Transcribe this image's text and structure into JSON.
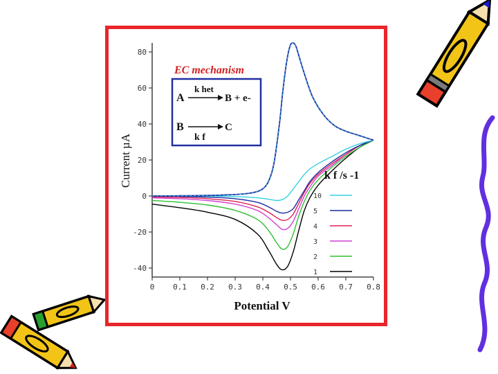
{
  "chart_data": {
    "type": "line",
    "title": "",
    "xlabel": "Potential V",
    "ylabel": "Current µA",
    "xlim": [
      0,
      0.8
    ],
    "ylim": [
      -45,
      85
    ],
    "xticks": [
      "0",
      "0.1",
      "0.2",
      "0.3",
      "0.4",
      "0.5",
      "0.6",
      "0.7",
      "0.8"
    ],
    "yticks": [
      {
        "value": 80,
        "label": "80"
      },
      {
        "value": 60,
        "label": "60"
      },
      {
        "value": 40,
        "label": "40"
      },
      {
        "value": 20,
        "label": "20"
      },
      {
        "value": 0,
        "label": "0"
      },
      {
        "value": -20,
        "label": "-20"
      },
      {
        "value": -40,
        "label": "-40"
      }
    ],
    "grid": false,
    "inset": {
      "title": "EC mechanism",
      "reaction1": {
        "reactant": "A",
        "rate": "k het",
        "product": "B + e-"
      },
      "reaction2": {
        "reactant": "B",
        "rate": "k f",
        "product": "C"
      }
    },
    "legend": {
      "title": "k f /s -1",
      "placement": "right",
      "entries": [
        {
          "name": "10",
          "color": "#35d0e0"
        },
        {
          "name": "5",
          "color": "#1a2aa0"
        },
        {
          "name": "4",
          "color": "#e02050"
        },
        {
          "name": "3",
          "color": "#d040d0"
        },
        {
          "name": "2",
          "color": "#30c030"
        },
        {
          "name": "1",
          "color": "#000000"
        }
      ]
    },
    "forward_sweep": {
      "x": [
        0,
        0.1,
        0.2,
        0.3,
        0.35,
        0.38,
        0.4,
        0.42,
        0.44,
        0.46,
        0.47,
        0.48,
        0.49,
        0.5,
        0.51,
        0.52,
        0.53,
        0.55,
        0.58,
        0.62,
        0.66,
        0.7,
        0.74,
        0.78,
        0.8
      ],
      "y": [
        0,
        0.1,
        0.3,
        0.8,
        1.5,
        2.5,
        4,
        8,
        18,
        40,
        55,
        68,
        78,
        84,
        85,
        83,
        78,
        68,
        55,
        45,
        39,
        36,
        34,
        32,
        31
      ]
    },
    "reverse_sweeps": [
      {
        "name": "10",
        "x": [
          0.8,
          0.75,
          0.7,
          0.65,
          0.6,
          0.57,
          0.55,
          0.53,
          0.51,
          0.49,
          0.47,
          0.45,
          0.42,
          0.38,
          0.3,
          0.2,
          0.1,
          0
        ],
        "y": [
          31,
          29,
          26,
          22,
          18,
          15,
          12,
          8,
          4,
          0,
          -2,
          -2.5,
          -1.8,
          -1,
          -0.3,
          0,
          0,
          0
        ]
      },
      {
        "name": "5",
        "x": [
          0.8,
          0.75,
          0.7,
          0.65,
          0.6,
          0.57,
          0.55,
          0.53,
          0.51,
          0.49,
          0.47,
          0.45,
          0.42,
          0.38,
          0.3,
          0.2,
          0.1,
          0
        ],
        "y": [
          31,
          28,
          24,
          19,
          13,
          8,
          3,
          -2,
          -7,
          -9,
          -9.5,
          -8.5,
          -6,
          -3.5,
          -1.5,
          -0.6,
          -0.2,
          0
        ]
      },
      {
        "name": "4",
        "x": [
          0.8,
          0.75,
          0.7,
          0.65,
          0.6,
          0.57,
          0.55,
          0.53,
          0.51,
          0.49,
          0.47,
          0.45,
          0.42,
          0.38,
          0.3,
          0.2,
          0.1,
          0
        ],
        "y": [
          31,
          28,
          23,
          18,
          12,
          7,
          2,
          -4,
          -10,
          -13,
          -13.5,
          -12,
          -9,
          -6,
          -3,
          -1.5,
          -0.8,
          -0.5
        ]
      },
      {
        "name": "3",
        "x": [
          0.8,
          0.75,
          0.7,
          0.65,
          0.6,
          0.57,
          0.55,
          0.53,
          0.51,
          0.49,
          0.47,
          0.45,
          0.42,
          0.38,
          0.3,
          0.2,
          0.1,
          0
        ],
        "y": [
          31,
          28,
          23,
          17,
          11,
          5,
          0,
          -7,
          -14,
          -18,
          -18.5,
          -16,
          -12,
          -8,
          -4.5,
          -2.5,
          -1.5,
          -1
        ]
      },
      {
        "name": "2",
        "x": [
          0.8,
          0.75,
          0.7,
          0.65,
          0.6,
          0.57,
          0.55,
          0.53,
          0.51,
          0.49,
          0.47,
          0.45,
          0.42,
          0.38,
          0.3,
          0.2,
          0.1,
          0
        ],
        "y": [
          31,
          27,
          22,
          16,
          9,
          3,
          -3,
          -11,
          -21,
          -28,
          -29.5,
          -26,
          -19,
          -13,
          -8,
          -5,
          -3.5,
          -2.5
        ]
      },
      {
        "name": "1",
        "x": [
          0.8,
          0.75,
          0.7,
          0.65,
          0.6,
          0.57,
          0.55,
          0.53,
          0.51,
          0.49,
          0.47,
          0.45,
          0.42,
          0.38,
          0.3,
          0.2,
          0.1,
          0
        ],
        "y": [
          31,
          27,
          21,
          14,
          6,
          -1,
          -8,
          -19,
          -31,
          -39,
          -41,
          -38,
          -30,
          -21,
          -13,
          -9,
          -6.5,
          -4.5
        ]
      }
    ]
  },
  "decor": {
    "frame_color": "#e8252b",
    "inset_border_color": "#2030a0",
    "inset_title_color": "#d02020",
    "clipart": [
      "pencil-icon",
      "pencil-icon",
      "pencil-icon",
      "squiggle-line"
    ]
  }
}
